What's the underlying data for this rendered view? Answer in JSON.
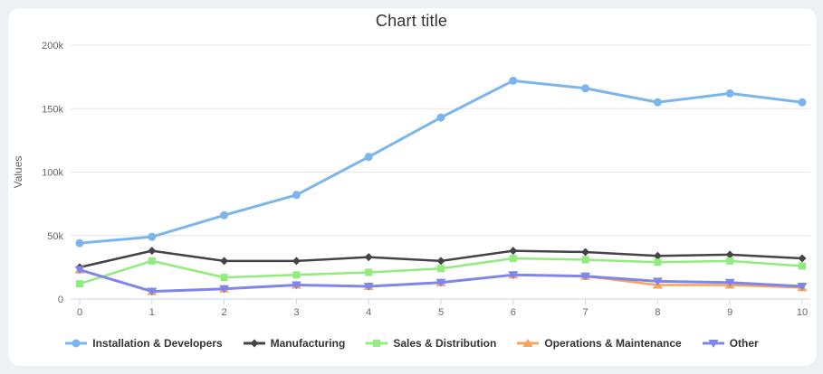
{
  "chart_data": {
    "type": "line",
    "title": "Chart title",
    "ylabel": "Values",
    "x": [
      0,
      1,
      2,
      3,
      4,
      5,
      6,
      7,
      8,
      9,
      10
    ],
    "xtick_labels": [
      "0",
      "1",
      "2",
      "3",
      "4",
      "5",
      "6",
      "7",
      "8",
      "9",
      "10"
    ],
    "ylim": [
      0,
      200000
    ],
    "yticks": [
      {
        "value": 0,
        "label": "0"
      },
      {
        "value": 50000,
        "label": "50k"
      },
      {
        "value": 100000,
        "label": "100k"
      },
      {
        "value": 150000,
        "label": "150k"
      },
      {
        "value": 200000,
        "label": "200k"
      }
    ],
    "grid": true,
    "legend_position": "bottom",
    "theme": {
      "grid_color": "#e6e6e6",
      "axis_line_color": "#ccd6eb",
      "tick_label_color": "#666666",
      "title_color": "#333333",
      "legend_text_color": "#333333",
      "card_background": "#ffffff",
      "page_background": "#eef0f3"
    },
    "series": [
      {
        "name": "Installation & Developers",
        "color": "#7cb5ec",
        "marker": "circle",
        "line_width": 3,
        "values": [
          44000,
          49000,
          66000,
          82000,
          112000,
          143000,
          172000,
          166000,
          155000,
          162000,
          155000
        ]
      },
      {
        "name": "Manufacturing",
        "color": "#434348",
        "marker": "diamond",
        "line_width": 2.5,
        "values": [
          25000,
          38000,
          30000,
          30000,
          33000,
          30000,
          38000,
          37000,
          34000,
          35000,
          32000
        ]
      },
      {
        "name": "Sales & Distribution",
        "color": "#90ed7d",
        "marker": "square",
        "line_width": 2.5,
        "values": [
          12000,
          30000,
          17000,
          19000,
          21000,
          24000,
          32000,
          31000,
          29000,
          30000,
          26000
        ]
      },
      {
        "name": "Operations & Maintenance",
        "color": "#f7a35c",
        "marker": "triangle-up",
        "line_width": 2.5,
        "values": [
          23000,
          6000,
          8000,
          11000,
          10000,
          13000,
          19000,
          18000,
          11000,
          11000,
          9000
        ]
      },
      {
        "name": "Other",
        "color": "#8085e9",
        "marker": "triangle-down",
        "line_width": 3,
        "values": [
          23000,
          6000,
          8000,
          11000,
          10000,
          13000,
          19000,
          18000,
          14000,
          13000,
          10000
        ]
      }
    ]
  }
}
